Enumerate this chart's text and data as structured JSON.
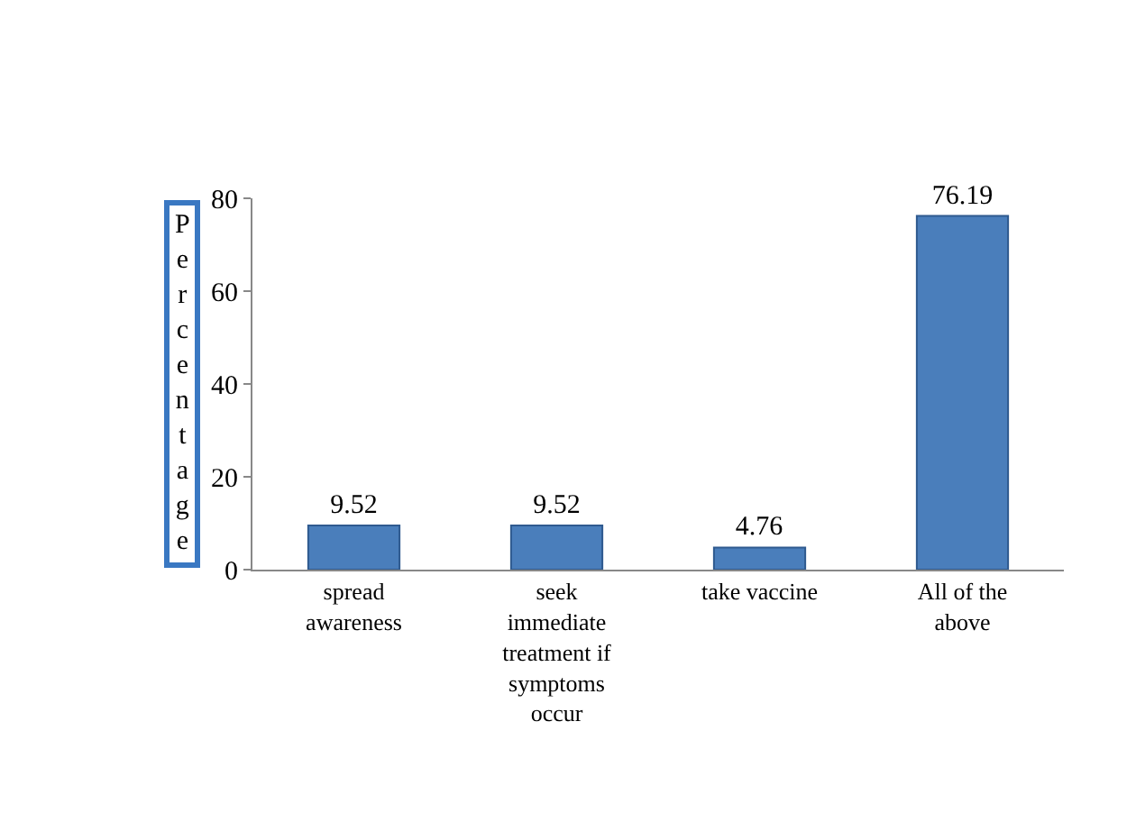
{
  "chart_data": {
    "type": "bar",
    "ylabel": "Percentage",
    "categories": [
      "spread awareness",
      "seek immediate treatment if symptoms occur",
      "take vaccine",
      "All of the above"
    ],
    "values": [
      9.52,
      9.52,
      4.76,
      76.19
    ],
    "color": "#4a7ebb",
    "ylim": [
      0,
      80
    ],
    "yticks": [
      0,
      20,
      40,
      60,
      80
    ],
    "data_labels": true
  }
}
